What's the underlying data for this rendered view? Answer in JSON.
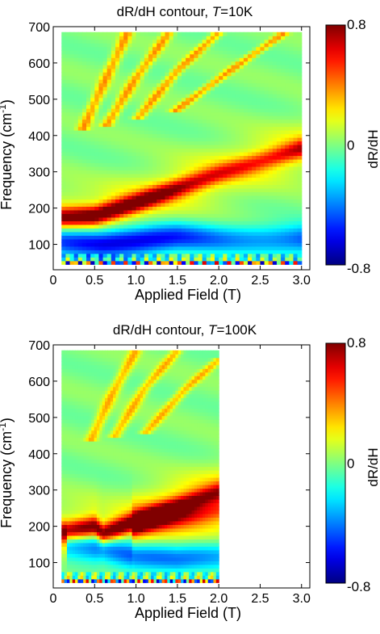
{
  "chart_data": [
    {
      "type": "heatmap",
      "title": "dR/dH contour, T=10K",
      "title_prefix": "dR/dH contour, ",
      "title_var": "T",
      "title_suffix": "=10K",
      "xlabel": "Applied Field (T)",
      "ylabel": "Frequency (cm⁻¹)",
      "ylabel_base": "Frequency (cm",
      "ylabel_sup": "-1",
      "ylabel_end": ")",
      "xlim": [
        0,
        3.1
      ],
      "ylim": [
        30,
        700
      ],
      "xticks": [
        0,
        0.5,
        1.0,
        1.5,
        2.0,
        2.5,
        3.0
      ],
      "xtick_labels": [
        "0",
        "0.5",
        "1.0",
        "1.5",
        "2.0",
        "2.5",
        "3.0"
      ],
      "yticks": [
        100,
        200,
        300,
        400,
        500,
        600,
        700
      ],
      "ytick_labels": [
        "100",
        "200",
        "300",
        "400",
        "500",
        "600",
        "700"
      ],
      "data_x_range": [
        0.1,
        3.0
      ],
      "data_y_range": [
        45,
        685
      ],
      "colorbar": {
        "label": "dR/dH",
        "min": -0.8,
        "max": 0.8,
        "tick_labels": [
          "0.8",
          "0",
          "-0.8"
        ],
        "colormap": "jet"
      },
      "features": [
        {
          "kind": "positive_ridge",
          "points": [
            [
              0.1,
              175
            ],
            [
              0.5,
              180
            ],
            [
              1.0,
              215
            ],
            [
              1.5,
              255
            ],
            [
              2.0,
              295
            ],
            [
              2.5,
              330
            ],
            [
              3.0,
              365
            ]
          ],
          "peak": 1.0
        },
        {
          "kind": "negative_band",
          "points": [
            [
              0.1,
              110
            ],
            [
              0.6,
              105
            ],
            [
              1.0,
              110
            ],
            [
              1.5,
              120
            ],
            [
              2.0,
              115
            ],
            [
              2.5,
              115
            ],
            [
              3.0,
              115
            ]
          ],
          "peak": -0.9
        },
        {
          "kind": "positive_fan",
          "lines": [
            [
              [
                0.9,
                685
              ],
              [
                0.6,
                540
              ],
              [
                0.4,
                440
              ]
            ],
            [
              [
                1.4,
                685
              ],
              [
                1.0,
                560
              ],
              [
                0.7,
                450
              ]
            ],
            [
              [
                2.0,
                685
              ],
              [
                1.5,
                580
              ],
              [
                1.1,
                470
              ]
            ],
            [
              [
                2.8,
                685
              ],
              [
                2.2,
                590
              ],
              [
                1.6,
                490
              ]
            ]
          ],
          "peak": 0.45
        }
      ]
    },
    {
      "type": "heatmap",
      "title": "dR/dH contour, T=100K",
      "title_prefix": "dR/dH contour, ",
      "title_var": "T",
      "title_suffix": "=100K",
      "xlabel": "Applied Field (T)",
      "ylabel": "Frequency (cm⁻¹)",
      "ylabel_base": "Frequency (cm",
      "ylabel_sup": "-1",
      "ylabel_end": ")",
      "xlim": [
        0,
        3.1
      ],
      "ylim": [
        30,
        700
      ],
      "xticks": [
        0,
        0.5,
        1.0,
        1.5,
        2.0,
        2.5,
        3.0
      ],
      "xtick_labels": [
        "0",
        "0.5",
        "1.0",
        "1.5",
        "2.0",
        "2.5",
        "3.0"
      ],
      "yticks": [
        100,
        200,
        300,
        400,
        500,
        600,
        700
      ],
      "ytick_labels": [
        "100",
        "200",
        "300",
        "400",
        "500",
        "600",
        "700"
      ],
      "data_x_range": [
        0.1,
        2.0
      ],
      "data_y_range": [
        45,
        685
      ],
      "colorbar": {
        "label": "dR/dH",
        "min": -0.8,
        "max": 0.8,
        "tick_labels": [
          "0.8",
          "0",
          "-0.8"
        ],
        "colormap": "jet"
      },
      "features": [
        {
          "kind": "positive_ridge",
          "points": [
            [
              0.1,
              185
            ],
            [
              0.5,
              200
            ],
            [
              0.6,
              180
            ],
            [
              1.0,
              215
            ],
            [
              1.5,
              255
            ],
            [
              2.0,
              295
            ]
          ],
          "peak": 1.0
        },
        {
          "kind": "positive_ridge",
          "points": [
            [
              1.0,
              200
            ],
            [
              1.5,
              225
            ],
            [
              2.0,
              245
            ]
          ],
          "peak": 0.5
        },
        {
          "kind": "negative_band",
          "points": [
            [
              0.2,
              150
            ],
            [
              0.6,
              140
            ],
            [
              1.0,
              120
            ],
            [
              1.5,
              110
            ],
            [
              2.0,
              120
            ]
          ],
          "peak": -0.7
        },
        {
          "kind": "positive_fan",
          "lines": [
            [
              [
                1.0,
                685
              ],
              [
                0.7,
                560
              ],
              [
                0.5,
                460
              ]
            ],
            [
              [
                1.5,
                685
              ],
              [
                1.1,
                580
              ],
              [
                0.8,
                470
              ]
            ],
            [
              [
                2.0,
                660
              ],
              [
                1.6,
                580
              ],
              [
                1.2,
                480
              ]
            ]
          ],
          "peak": 0.4
        }
      ]
    }
  ]
}
